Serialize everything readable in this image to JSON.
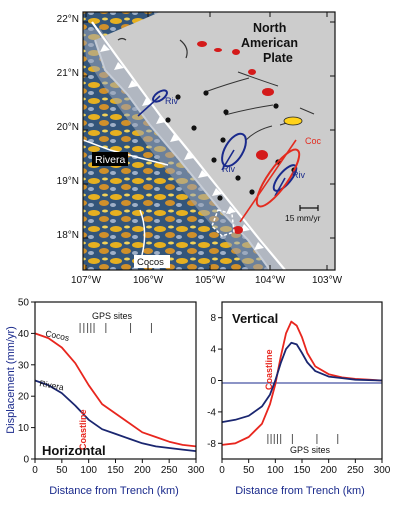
{
  "map": {
    "lat_labels": [
      "22°N",
      "21°N",
      "20°N",
      "19°N",
      "18°N"
    ],
    "lon_labels": [
      "107°W",
      "106°W",
      "105°W",
      "104°W",
      "103°W"
    ],
    "plate_north": [
      "North",
      "American",
      "Plate"
    ],
    "plate_rivera": "Rivera",
    "plate_cocos": "Cocos",
    "vec_labels": [
      "Riv",
      "Riv",
      "Riv",
      "Coc"
    ],
    "scale_label": "15 mm/yr",
    "colors": {
      "land": "#cccccc",
      "vector": "#1a2a8c",
      "cocos_vector": "#e32b1f",
      "volcano": "#d41a1a",
      "trench": "#ffffff"
    }
  },
  "chart_data": [
    {
      "type": "line",
      "panel": "Horizontal",
      "panel_label": "Horizontal",
      "xlabel": "Distance from Trench (km)",
      "ylabel": "Displacement (mm/yr)",
      "xlim": [
        0,
        300
      ],
      "ylim": [
        0,
        50
      ],
      "x_ticks": [
        "0",
        "50",
        "100",
        "150",
        "200",
        "250",
        "300"
      ],
      "y_ticks": [
        "0",
        "10",
        "20",
        "30",
        "40",
        "50"
      ],
      "coast_label": "Coastline",
      "coast_km": 100,
      "gps_label": "GPS sites",
      "gps_km": [
        84,
        91,
        98,
        104,
        110,
        132,
        178,
        217
      ],
      "series": [
        {
          "name": "Cocos",
          "color": "#e8261e",
          "x": [
            0,
            25,
            50,
            75,
            100,
            125,
            150,
            175,
            200,
            225,
            250,
            275,
            300
          ],
          "y": [
            40,
            38.5,
            35.5,
            30.5,
            23.5,
            17.5,
            14.5,
            11.5,
            8.5,
            7,
            5.5,
            4.5,
            4
          ]
        },
        {
          "name": "Rivera",
          "color": "#1a2670",
          "x": [
            0,
            25,
            50,
            75,
            100,
            125,
            150,
            175,
            200,
            225,
            250,
            275,
            300
          ],
          "y": [
            25,
            23.5,
            21,
            17,
            12.5,
            9.5,
            8,
            6.5,
            5,
            4,
            3.5,
            3,
            2.5
          ]
        }
      ]
    },
    {
      "type": "line",
      "panel": "Vertical",
      "panel_label": "Vertical",
      "xlabel": "Distance from Trench (km)",
      "xlim": [
        0,
        300
      ],
      "ylim": [
        -10,
        10
      ],
      "x_ticks": [
        "0",
        "50",
        "100",
        "150",
        "200",
        "250",
        "300"
      ],
      "y_ticks": [
        "-8",
        "-4",
        "0",
        "4",
        "8"
      ],
      "coast_label": "Coastline",
      "coast_km": 100,
      "gps_label": "GPS sites",
      "gps_km": [
        86,
        92,
        98,
        104,
        110,
        132,
        178,
        217
      ],
      "series": [
        {
          "name": "Cocos",
          "color": "#e8261e",
          "x": [
            0,
            25,
            50,
            75,
            90,
            100,
            110,
            120,
            130,
            140,
            150,
            160,
            175,
            200,
            225,
            250,
            275,
            300
          ],
          "y": [
            -8.2,
            -8,
            -7.2,
            -5.5,
            -3,
            -0.5,
            3,
            6,
            7.5,
            7,
            5.5,
            3.5,
            1.8,
            0.8,
            0.4,
            0.2,
            0.1,
            0
          ]
        },
        {
          "name": "Rivera",
          "color": "#1a2670",
          "x": [
            0,
            25,
            50,
            75,
            90,
            100,
            110,
            120,
            130,
            140,
            150,
            160,
            175,
            200,
            225,
            250,
            275,
            300
          ],
          "y": [
            -5.3,
            -5,
            -4.5,
            -3.3,
            -1.8,
            0,
            2.2,
            4,
            4.8,
            4.6,
            3.5,
            2.3,
            1.2,
            0.5,
            0.3,
            0.1,
            0.05,
            0
          ]
        }
      ]
    }
  ]
}
